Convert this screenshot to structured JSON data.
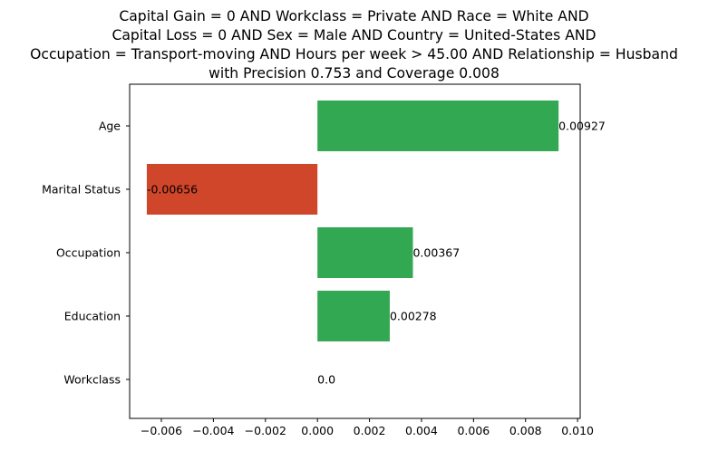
{
  "chart_data": {
    "type": "bar",
    "orientation": "horizontal",
    "title_lines": [
      "Capital Gain = 0 AND Workclass = Private AND Race = White AND",
      "Capital Loss = 0 AND Sex = Male AND Country = United-States AND",
      "Occupation = Transport-moving AND Hours per week > 45.00 AND Relationship = Husband",
      "with Precision 0.753 and Coverage 0.008"
    ],
    "categories": [
      "Age",
      "Marital Status",
      "Occupation",
      "Education",
      "Workclass"
    ],
    "values": [
      0.00927,
      -0.00656,
      0.00367,
      0.00278,
      0.0
    ],
    "value_labels": [
      "0.00927",
      "-0.00656",
      "0.00367",
      "0.00278",
      "0.0"
    ],
    "xlim": [
      -0.00722,
      0.0101
    ],
    "xticks": [
      -0.006,
      -0.004,
      -0.002,
      0.0,
      0.002,
      0.004,
      0.006,
      0.008,
      0.01
    ],
    "xtick_labels": [
      "−0.006",
      "−0.004",
      "−0.002",
      "0.000",
      "0.002",
      "0.004",
      "0.006",
      "0.008",
      "0.010"
    ],
    "xlabel": "",
    "ylabel": "",
    "grid": false,
    "colors": {
      "positive": "#33a852",
      "negative": "#d0462a"
    }
  }
}
